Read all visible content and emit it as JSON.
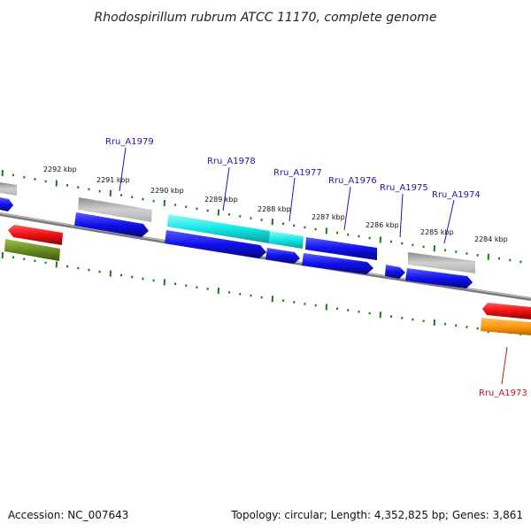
{
  "title": "Rhodospirillum rubrum ATCC 11170, complete genome",
  "footer": {
    "accession": "Accession: NC_007643",
    "summary": "Topology: circular; Length: 4,352,825 bp; Genes: 3,861"
  },
  "scale_labels": [
    "2292 kbp",
    "2291 kbp",
    "2290 kbp",
    "2289 kbp",
    "2288 kbp",
    "2287 kbp",
    "2286 kbp",
    "2285 kbp",
    "2284 kbp"
  ],
  "gene_labels": [
    "Rru_A1979",
    "Rru_A1978",
    "Rru_A1977",
    "Rru_A1976",
    "Rru_A1975",
    "Rru_A1974",
    "Rru_A1973"
  ],
  "colors": {
    "blue_gene": "#1010ee",
    "cyan_gene": "#11e6e6",
    "gray_gene": "#b4b4b4",
    "red_gene": "#ee1010",
    "green_gene": "#6b8c22",
    "orange_gene": "#ff9a10",
    "backbone": "#7a7a7a",
    "ticks": "#1a7a1a",
    "label_blue": "#1a1aaa",
    "label_red": "#cc1111"
  }
}
